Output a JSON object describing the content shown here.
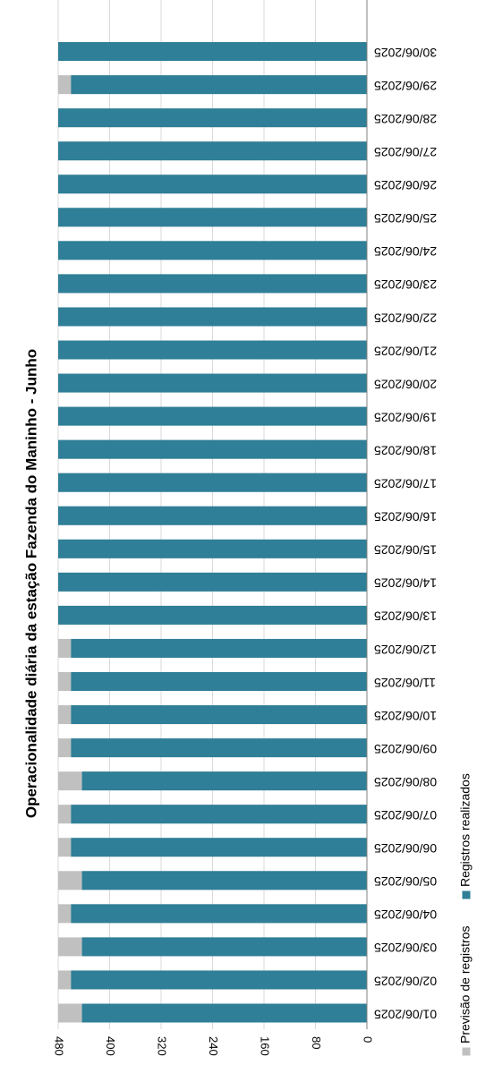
{
  "chart_data": {
    "type": "bar",
    "orientation": "horizontal-rotated",
    "title": "Operacionalidade  diária da estação Fazenda do Maninho - Junho",
    "xlabel": "",
    "ylabel": "",
    "ylim": [
      0,
      480
    ],
    "yticks": [
      0,
      80,
      160,
      240,
      320,
      400,
      480
    ],
    "grid": true,
    "legend_position": "bottom",
    "categories": [
      "01/06/2025",
      "02/06/2025",
      "03/06/2025",
      "04/06/2025",
      "05/06/2025",
      "06/06/2025",
      "07/06/2025",
      "08/06/2025",
      "09/06/2025",
      "10/06/2025",
      "11/06/2025",
      "12/06/2025",
      "13/06/2025",
      "14/06/2025",
      "15/06/2025",
      "16/06/2025",
      "17/06/2025",
      "18/06/2025",
      "19/06/2025",
      "20/06/2025",
      "21/06/2025",
      "22/06/2025",
      "23/06/2025",
      "24/06/2025",
      "25/06/2025",
      "26/06/2025",
      "27/06/2025",
      "28/06/2025",
      "29/06/2025",
      "30/06/2025"
    ],
    "series": [
      {
        "name": "Previsão de registros",
        "color": "#c0c0c0",
        "values": [
          480,
          480,
          480,
          480,
          480,
          480,
          480,
          480,
          480,
          480,
          480,
          480,
          480,
          480,
          480,
          480,
          480,
          480,
          480,
          480,
          480,
          480,
          480,
          480,
          480,
          480,
          480,
          480,
          480,
          480
        ]
      },
      {
        "name": "Registros realizados",
        "color": "#2e7f97",
        "values": [
          443,
          460,
          443,
          460,
          443,
          460,
          460,
          443,
          460,
          460,
          460,
          460,
          480,
          480,
          480,
          480,
          480,
          480,
          480,
          480,
          480,
          480,
          480,
          480,
          480,
          480,
          480,
          480,
          460,
          480
        ]
      }
    ]
  }
}
